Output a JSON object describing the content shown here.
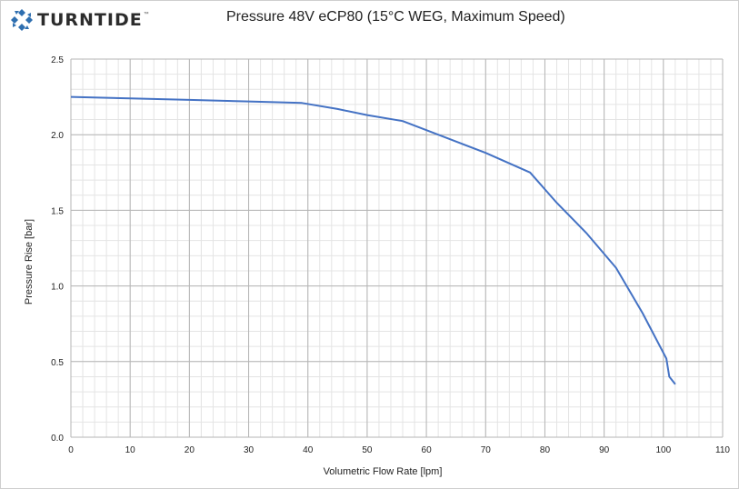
{
  "brand": {
    "name": "TURNTIDE",
    "mark": "™",
    "color": "#2f6fb0"
  },
  "chart_data": {
    "type": "line",
    "title": "Pressure 48V eCP80 (15°C WEG, Maximum Speed)",
    "xlabel": "Volumetric Flow Rate [lpm]",
    "ylabel": "Pressure Rise [bar]",
    "xlim": [
      0,
      110
    ],
    "ylim": [
      0,
      2.5
    ],
    "xticks": [
      0,
      10,
      20,
      30,
      40,
      50,
      60,
      70,
      80,
      90,
      100,
      110
    ],
    "yticks": [
      0.0,
      0.5,
      1.0,
      1.5,
      2.0,
      2.5
    ],
    "ytick_labels": [
      "0.0",
      "0.5",
      "1.0",
      "1.5",
      "2.0",
      "2.5"
    ],
    "grid": true,
    "color": "#4472c4",
    "series": [
      {
        "x": [
          0,
          10,
          20,
          30,
          39,
          45,
          50,
          56,
          60,
          66,
          70,
          77.5,
          82,
          87,
          92,
          96.5,
          100.5,
          101,
          102
        ],
        "y": [
          2.25,
          2.24,
          2.23,
          2.22,
          2.21,
          2.17,
          2.13,
          2.09,
          2.03,
          1.94,
          1.88,
          1.75,
          1.55,
          1.35,
          1.12,
          0.82,
          0.52,
          0.4,
          0.35
        ]
      }
    ]
  }
}
